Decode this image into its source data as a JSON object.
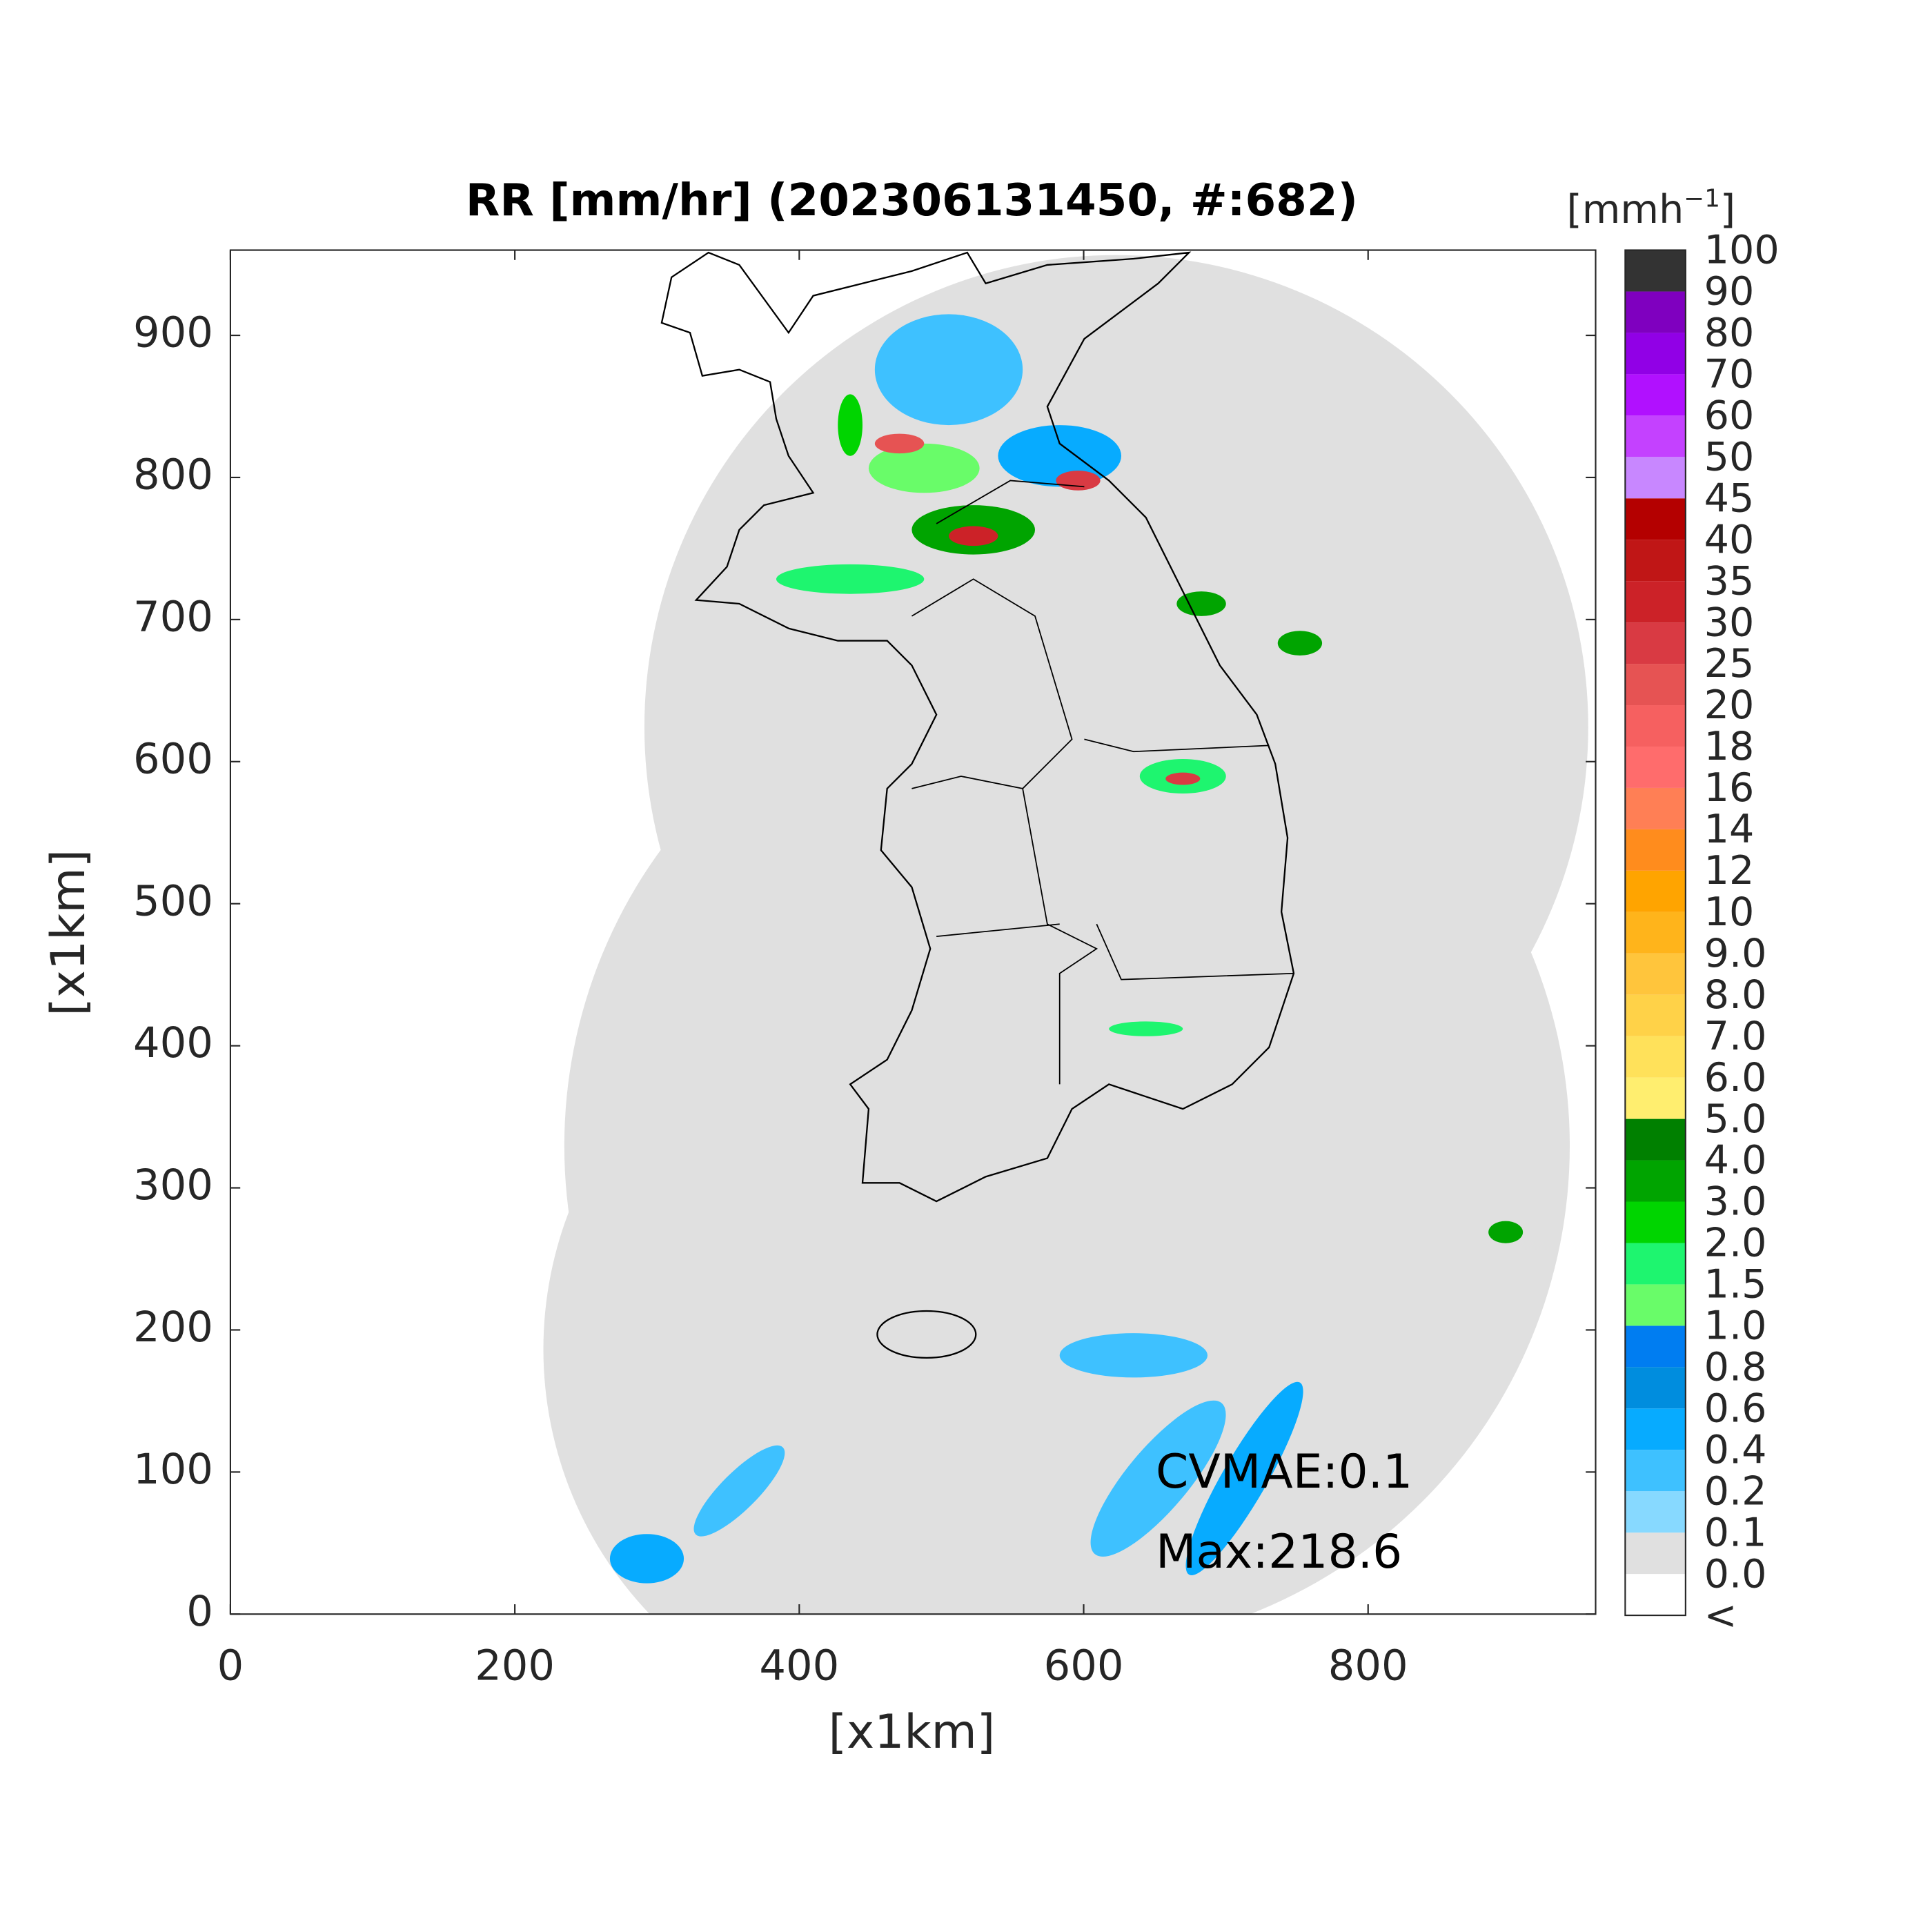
{
  "chart_data": {
    "type": "radar-map",
    "title": "RR [mm/hr] (202306131450, #:682)",
    "xlabel": "[x1km]",
    "ylabel": "[x1km]",
    "xlim": [
      0,
      960
    ],
    "ylim": [
      0,
      960
    ],
    "xticks": [
      0,
      200,
      400,
      600,
      800
    ],
    "yticks": [
      0,
      100,
      200,
      300,
      400,
      500,
      600,
      700,
      800,
      900
    ],
    "annotations": [
      "CVMAE:0.1",
      "Max:218.6"
    ],
    "colorbar_title": [
      "[mmh",
      "−1",
      "]"
    ],
    "colorbar_labels": [
      "<",
      "0.0",
      "0.1",
      "0.2",
      "0.4",
      "0.6",
      "0.8",
      "1.0",
      "1.5",
      "2.0",
      "3.0",
      "4.0",
      "5.0",
      "6.0",
      "7.0",
      "8.0",
      "9.0",
      "10",
      "12",
      "14",
      "16",
      "18",
      "20",
      "25",
      "30",
      "35",
      "40",
      "45",
      "50",
      "60",
      "70",
      "80",
      "90",
      "100"
    ],
    "colorbar_colors": [
      "#ffffff",
      "#e0e0e0",
      "#87d9ff",
      "#3ec1ff",
      "#07abff",
      "#008dde",
      "#007df1",
      "#69fc69",
      "#1ef56f",
      "#00d500",
      "#00a400",
      "#008000",
      "#ffee6f",
      "#ffe15a",
      "#ffd248",
      "#ffc53c",
      "#ffb41b",
      "#ffa400",
      "#ff8c1d",
      "#ff7f55",
      "#ff6c6c",
      "#f66060",
      "#e65353",
      "#d93a43",
      "#cc2228",
      "#c01616",
      "#b40000",
      "#c887ff",
      "#c441ff",
      "#b110ff",
      "#9100e6",
      "#7f00bf",
      "#333333"
    ]
  }
}
